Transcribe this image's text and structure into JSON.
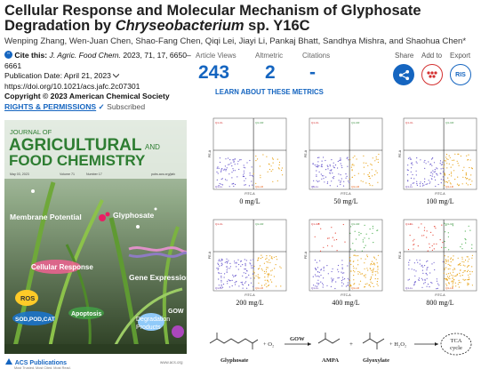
{
  "header": {
    "title_line1": "Cellular Response and Molecular Mechanism of Glyphosate",
    "title_line2_prefix": "Degradation by ",
    "title_line2_italic": "Chryseobacterium",
    "title_line2_suffix": " sp. Y16C",
    "authors": "Wenping Zhang, Wen-Juan Chen, Shao-Fang Chen, Qiqi Lei, Jiayi Li, Pankaj Bhatt, Sandhya Mishra, and Shaohua Chen*"
  },
  "citation": {
    "cite_label": "Cite this:",
    "journal": "J. Agric. Food Chem.",
    "details": "2023, 71, 17, 6650–",
    "page_end": "6661",
    "pub_date": "Publication Date: April 21, 2023",
    "doi": "https://doi.org/10.1021/acs.jafc.2c07301",
    "copyright": "Copyright © 2023 American Chemical Society",
    "rights": "RIGHTS & PERMISSIONS",
    "subscribed": "Subscribed"
  },
  "metrics": {
    "article_views_label": "Article Views",
    "article_views": "243",
    "altmetric_label": "Altmetric",
    "altmetric": "2",
    "citations_label": "Citations",
    "citations": "-",
    "learn_more": "LEARN ABOUT THESE METRICS"
  },
  "actions": {
    "share": "Share",
    "add_to": "Add to",
    "export": "Export",
    "ris": "RIS"
  },
  "cover": {
    "journal_of": "JOURNAL OF",
    "agricultural": "AGRICULTURAL",
    "and": "AND",
    "food_chemistry": "FOOD CHEMISTRY",
    "date": "May 03, 2023",
    "volume": "Volume 71",
    "number": "Number 17",
    "url": "pubs.acs.org/jafc",
    "membrane_potential": "Membrane Potential",
    "glyphosate": "Glyphosate",
    "cellular_response": "Cellular Response",
    "ros": "ROS",
    "gene_expression": "Gene Expression",
    "enzymes": "SOD,POD,CAT",
    "apoptosis": "Apoptosis",
    "degradation": "Degradation",
    "products": "Products",
    "gow": "GOW",
    "publisher": "ACS Publications",
    "publisher_sub": "Most Trusted. Most Cited. Most Read.",
    "site": "www.acs.org"
  },
  "flow_panels": [
    {
      "label": "0 mg/L"
    },
    {
      "label": "50 mg/L"
    },
    {
      "label": "100 mg/L"
    },
    {
      "label": "200 mg/L"
    },
    {
      "label": "400 mg/L"
    },
    {
      "label": "800 mg/L"
    }
  ],
  "flow_axis": {
    "x": "FITC-A",
    "y": "PE-A"
  },
  "quadrant_labels": {
    "q1_ul": "Q1-UL",
    "q1_ur": "Q1-UR",
    "q1_ll": "Q1-LL",
    "q1_lr": "Q1-LR"
  },
  "pathway": {
    "glyphosate": "Glyphosate",
    "o2": "+ O₂",
    "gow": "GOW",
    "ampa": "AMPA",
    "plus1": "+",
    "glyoxylate": "Glyoxylate",
    "h2o2": "+ H₂O₂",
    "tca": "TCA",
    "cycle": "cycle"
  },
  "colors": {
    "accent_blue": "#1565c0",
    "title_text": "#1f1f1f",
    "add_red": "#d32f2f",
    "dots_purple": "#6a5acd",
    "dots_orange": "#e8a317",
    "dots_red": "#e64a3b",
    "dots_green": "#4caf50"
  }
}
